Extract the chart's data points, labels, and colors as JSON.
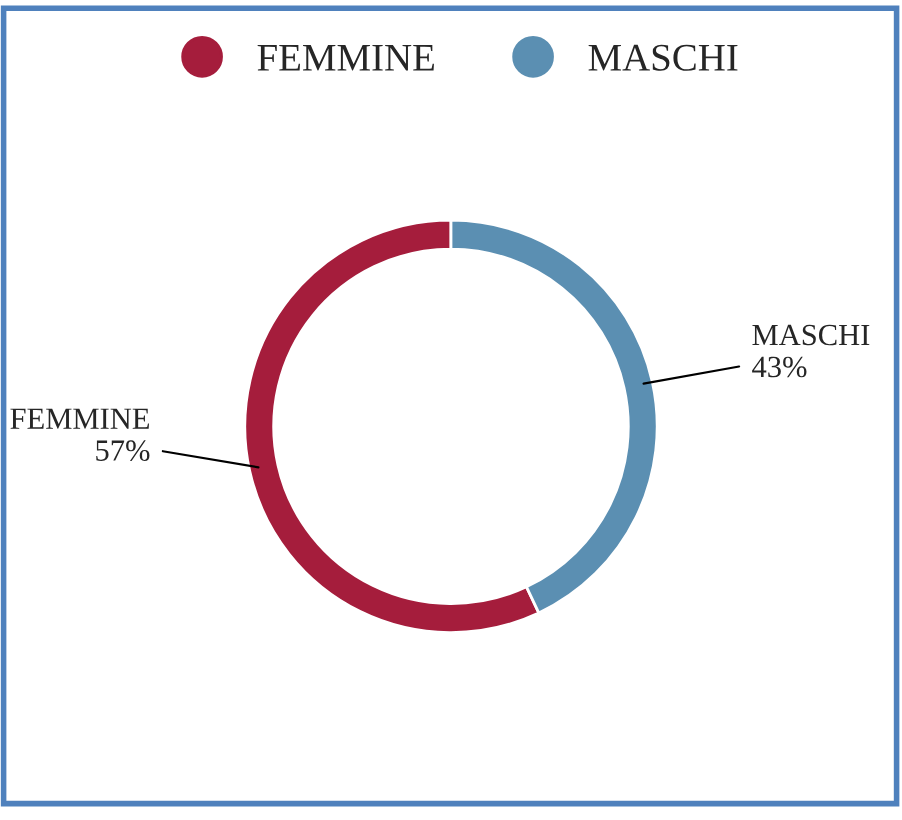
{
  "chart_data": {
    "type": "donut",
    "categories": [
      "FEMMINE",
      "MASCHI"
    ],
    "values": [
      57,
      43
    ],
    "colors": [
      "#a51d3c",
      "#5b8fb2"
    ],
    "value_labels": [
      "57%",
      "43%"
    ],
    "legend": "top"
  }
}
